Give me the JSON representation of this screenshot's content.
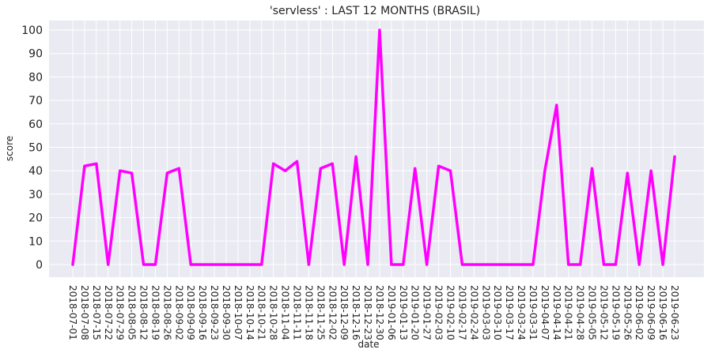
{
  "chart_data": {
    "type": "line",
    "title": "'servless' : LAST 12 MONTHS (BRASIL)",
    "xlabel": "date",
    "ylabel": "score",
    "ylim": [
      0,
      100
    ],
    "yticks": [
      0,
      10,
      20,
      30,
      40,
      50,
      60,
      70,
      80,
      90,
      100
    ],
    "grid": true,
    "background": "#eaeaf2",
    "line_color": "#ff00ff",
    "categories": [
      "2018-07-01",
      "2018-07-08",
      "2018-07-15",
      "2018-07-22",
      "2018-07-29",
      "2018-08-05",
      "2018-08-12",
      "2018-08-19",
      "2018-08-26",
      "2018-09-02",
      "2018-09-09",
      "2018-09-16",
      "2018-09-23",
      "2018-09-30",
      "2018-10-07",
      "2018-10-14",
      "2018-10-21",
      "2018-10-28",
      "2018-11-04",
      "2018-11-11",
      "2018-11-18",
      "2018-11-25",
      "2018-12-02",
      "2018-12-09",
      "2018-12-16",
      "2018-12-23",
      "2018-12-30",
      "2019-01-06",
      "2019-01-13",
      "2019-01-20",
      "2019-01-27",
      "2019-02-03",
      "2019-02-10",
      "2019-02-17",
      "2019-02-24",
      "2019-03-03",
      "2019-03-10",
      "2019-03-17",
      "2019-03-24",
      "2019-03-31",
      "2019-04-07",
      "2019-04-14",
      "2019-04-21",
      "2019-04-28",
      "2019-05-05",
      "2019-05-12",
      "2019-05-19",
      "2019-05-26",
      "2019-06-02",
      "2019-06-09",
      "2019-06-16",
      "2019-06-23"
    ],
    "series": [
      {
        "values": [
          0,
          42,
          43,
          0,
          40,
          39,
          0,
          0,
          39,
          41,
          0,
          0,
          0,
          0,
          0,
          0,
          0,
          43,
          40,
          44,
          0,
          41,
          43,
          0,
          46,
          0,
          100,
          0,
          0,
          41,
          0,
          42,
          40,
          0,
          0,
          0,
          0,
          0,
          0,
          0,
          40,
          68,
          0,
          0,
          41,
          0,
          0,
          39,
          0,
          40,
          0,
          46
        ]
      }
    ]
  }
}
